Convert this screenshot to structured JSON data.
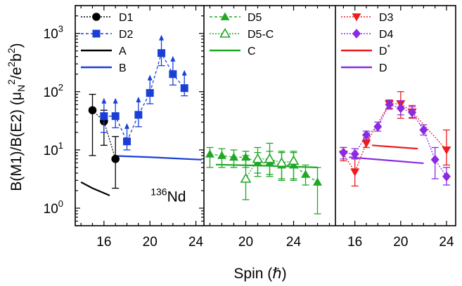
{
  "chart_data": {
    "type": "scatter",
    "ylabel_parts": {
      "pre": "B(M1)/B(E2) (",
      "mu": "μ",
      "sub_n": "N",
      "mid": "",
      "sup_a": "2",
      "slash": "/e",
      "sup_b": "2",
      "b": "b",
      "sup_c": "2",
      "close": ")"
    },
    "xlabel": "Spin (ℏ)",
    "yscale": "log",
    "ylim": [
      0.5,
      3000
    ],
    "ytick_labels": [
      {
        "v": 1,
        "base": "10",
        "exp": "0"
      },
      {
        "v": 10,
        "base": "10",
        "exp": "1"
      },
      {
        "v": 100,
        "base": "10",
        "exp": "2"
      },
      {
        "v": 1000,
        "base": "10",
        "exp": "3"
      }
    ],
    "annotation": {
      "sup": "136",
      "text": "Nd",
      "panel": 0,
      "x": 21.6,
      "y": 1.3
    },
    "panels": [
      {
        "xlim": [
          13.5,
          24.7
        ],
        "xticks": [
          16,
          20,
          24
        ],
        "legend": [
          {
            "label": "D1",
            "series": "D1"
          },
          {
            "label": "D2",
            "series": "D2"
          },
          {
            "label": "A",
            "series": "A"
          },
          {
            "label": "B",
            "series": "B"
          }
        ],
        "series": [
          {
            "name": "D1",
            "color": "#000000",
            "marker": "circle",
            "line": "dotted",
            "points": [
              {
                "x": 15,
                "y": 48,
                "lo": 8,
                "hi": 90
              },
              {
                "x": 16,
                "y": 31,
                "lo": 12,
                "hi": 48
              },
              {
                "x": 17,
                "y": 7,
                "lo": 2.2,
                "hi": 17
              }
            ]
          },
          {
            "name": "D2",
            "color": "#1a3fd6",
            "marker": "square",
            "line": "dashed",
            "errors_up_arrow": true,
            "points": [
              {
                "x": 16,
                "y": 38,
                "lo": 20
              },
              {
                "x": 17,
                "y": 38,
                "lo": 24
              },
              {
                "x": 18,
                "y": 14,
                "lo": 10
              },
              {
                "x": 19,
                "y": 40,
                "lo": 25
              },
              {
                "x": 20,
                "y": 95,
                "lo": 62
              },
              {
                "x": 21,
                "y": 460,
                "lo": 280
              },
              {
                "x": 22,
                "y": 200,
                "lo": 130
              },
              {
                "x": 23,
                "y": 115,
                "lo": 85
              }
            ]
          },
          {
            "name": "A",
            "color": "#000000",
            "marker": "none",
            "line": "solid",
            "points": [
              {
                "x": 14,
                "y": 2.8
              },
              {
                "x": 15,
                "y": 2.2
              },
              {
                "x": 16.5,
                "y": 1.65
              }
            ]
          },
          {
            "name": "B",
            "color": "#1a3fd6",
            "marker": "none",
            "line": "solid",
            "points": [
              {
                "x": 17,
                "y": 7.9
              },
              {
                "x": 20,
                "y": 7.5
              },
              {
                "x": 24.5,
                "y": 6.8
              }
            ]
          }
        ]
      },
      {
        "xlim": [
          16.5,
          27.5
        ],
        "xticks": [
          20,
          24
        ],
        "legend": [
          {
            "label": "D5",
            "series": "D5"
          },
          {
            "label": "D5-C",
            "series": "D5-C"
          },
          {
            "label": "C",
            "series": "C"
          }
        ],
        "series": [
          {
            "name": "D5",
            "color": "#1fa824",
            "marker": "triangle-up",
            "line": "dashed",
            "points": [
              {
                "x": 17,
                "y": 8.5,
                "lo": 5,
                "hi": 11
              },
              {
                "x": 18,
                "y": 8,
                "lo": 5,
                "hi": 10.5
              },
              {
                "x": 19,
                "y": 7.5,
                "lo": 5,
                "hi": 10
              },
              {
                "x": 20,
                "y": 7.5,
                "lo": 5,
                "hi": 9.5
              },
              {
                "x": 21,
                "y": 6,
                "lo": 3.5,
                "hi": 9
              },
              {
                "x": 22,
                "y": 6,
                "lo": 3.5,
                "hi": 9.5
              },
              {
                "x": 23,
                "y": 5.5,
                "lo": 3,
                "hi": 9
              },
              {
                "x": 24,
                "y": 5.5,
                "lo": 3,
                "hi": 9
              },
              {
                "x": 25,
                "y": 3.8,
                "lo": 2.5,
                "hi": 5.5
              },
              {
                "x": 26,
                "y": 2.8,
                "lo": 0.8,
                "hi": 5
              }
            ]
          },
          {
            "name": "D5-C",
            "color": "#1fa824",
            "marker": "triangle-up-open",
            "line": "dotted",
            "points": [
              {
                "x": 20,
                "y": 3.2,
                "lo": 1.4,
                "hi": 8
              },
              {
                "x": 21,
                "y": 7,
                "lo": 4,
                "hi": 11
              },
              {
                "x": 22,
                "y": 7,
                "lo": 3.8,
                "hi": 13
              },
              {
                "x": 23,
                "y": 6,
                "lo": 3.2,
                "hi": 9.5
              },
              {
                "x": 24,
                "y": 6.5,
                "lo": 3.2,
                "hi": 9.5
              }
            ]
          },
          {
            "name": "C",
            "color": "#1fa824",
            "marker": "none",
            "line": "solid",
            "points": [
              {
                "x": 17.5,
                "y": 5.6
              },
              {
                "x": 21,
                "y": 5.4
              },
              {
                "x": 26,
                "y": 5.0
              }
            ]
          }
        ]
      },
      {
        "xlim": [
          14.3,
          24.8
        ],
        "xticks": [
          16,
          20,
          24
        ],
        "legend": [
          {
            "label": "D3",
            "series": "D3"
          },
          {
            "label": "D4",
            "series": "D4"
          },
          {
            "label": "D",
            "sup": "*",
            "series": "D*"
          },
          {
            "label": "D",
            "series": "D"
          }
        ],
        "series": [
          {
            "name": "D3",
            "color": "#ee1c1c",
            "marker": "triangle-down",
            "line": "dotted",
            "points": [
              {
                "x": 15,
                "y": 8.5,
                "lo": 6.5,
                "hi": 11
              },
              {
                "x": 16,
                "y": 4.2,
                "lo": 2.4,
                "hi": 7
              },
              {
                "x": 17,
                "y": 13,
                "lo": 11,
                "hi": 16
              },
              {
                "x": 19,
                "y": 62,
                "lo": 52,
                "hi": 72
              },
              {
                "x": 20,
                "y": 62,
                "lo": 35,
                "hi": 100
              },
              {
                "x": 21,
                "y": 45,
                "lo": 35,
                "hi": 58
              },
              {
                "x": 24,
                "y": 10,
                "lo": 5.5,
                "hi": 22
              }
            ]
          },
          {
            "name": "D4",
            "color": "#8a2be2",
            "marker": "diamond",
            "line": "dotted",
            "points": [
              {
                "x": 15,
                "y": 9,
                "lo": 7,
                "hi": 11
              },
              {
                "x": 16,
                "y": 8.5,
                "lo": 7,
                "hi": 10.5
              },
              {
                "x": 17,
                "y": 18,
                "lo": 15,
                "hi": 21
              },
              {
                "x": 18,
                "y": 25,
                "lo": 21,
                "hi": 30
              },
              {
                "x": 19,
                "y": 60,
                "lo": 50,
                "hi": 72
              },
              {
                "x": 20,
                "y": 52,
                "lo": 40,
                "hi": 70
              },
              {
                "x": 21,
                "y": 44,
                "lo": 36,
                "hi": 55
              },
              {
                "x": 22,
                "y": 22,
                "lo": 18,
                "hi": 27
              },
              {
                "x": 23,
                "y": 6.8,
                "lo": 3.2,
                "hi": 11
              },
              {
                "x": 24,
                "y": 3.5,
                "lo": 2.5,
                "hi": 5
              }
            ]
          },
          {
            "name": "D*",
            "color": "#ee1c1c",
            "marker": "none",
            "line": "solid",
            "points": [
              {
                "x": 17.5,
                "y": 12
              },
              {
                "x": 19.5,
                "y": 11.2
              },
              {
                "x": 21.5,
                "y": 10.5
              }
            ]
          },
          {
            "name": "D",
            "color": "#8a2be2",
            "marker": "none",
            "line": "solid",
            "points": [
              {
                "x": 15.5,
                "y": 7.5
              },
              {
                "x": 19,
                "y": 6.6
              },
              {
                "x": 22,
                "y": 5.9
              }
            ]
          }
        ]
      }
    ]
  }
}
